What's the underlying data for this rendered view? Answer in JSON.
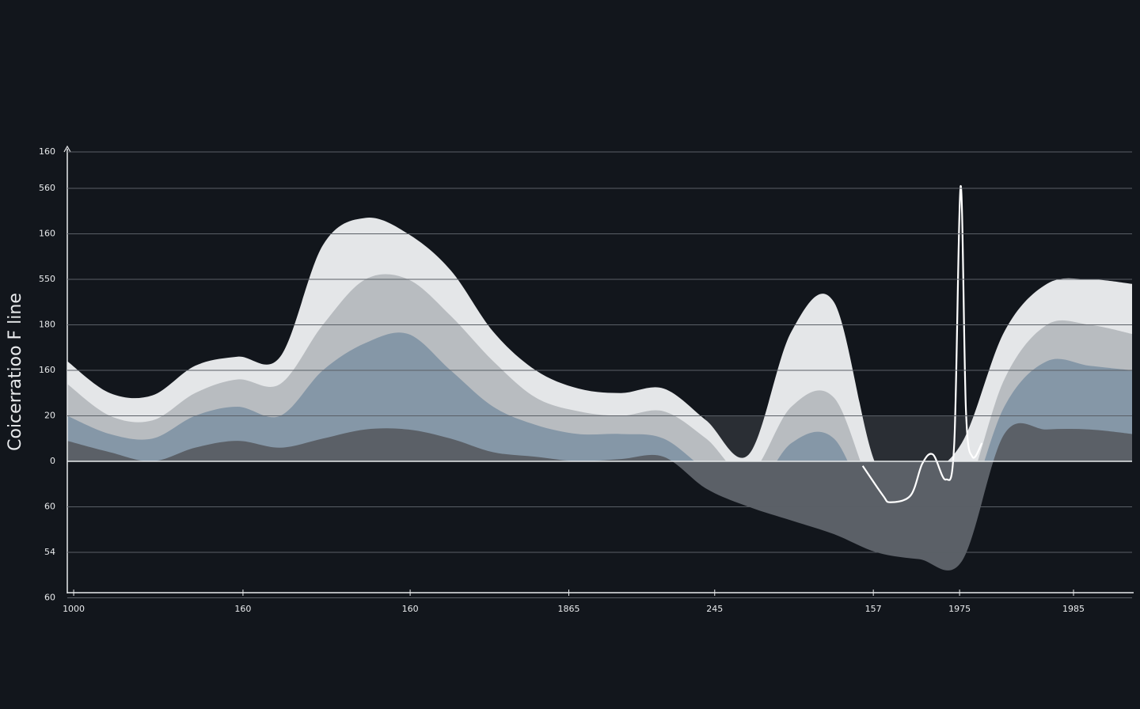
{
  "chart_data": {
    "type": "area",
    "ylabel": "Coicerratioo F line",
    "x": [
      0,
      4,
      8,
      12,
      16,
      20,
      24,
      28,
      32,
      36,
      40,
      44,
      48,
      52,
      56,
      60,
      64,
      68,
      72,
      76,
      80,
      84,
      88,
      92,
      96,
      100
    ],
    "xlim": [
      0,
      100
    ],
    "ylim": [
      -3,
      6.8
    ],
    "xticks": [
      {
        "value": 0.6,
        "label": "1000"
      },
      {
        "value": 16.5,
        "label": "160"
      },
      {
        "value": 32.2,
        "label": "160"
      },
      {
        "value": 47.1,
        "label": "1865"
      },
      {
        "value": 60.8,
        "label": "245"
      },
      {
        "value": 75.7,
        "label": "157"
      },
      {
        "value": 83.8,
        "label": "1975"
      },
      {
        "value": 94.5,
        "label": "1985"
      }
    ],
    "yticks": [
      {
        "value": 6.8,
        "label": "160"
      },
      {
        "value": 6,
        "label": "560"
      },
      {
        "value": 5,
        "label": "160"
      },
      {
        "value": 4,
        "label": "550"
      },
      {
        "value": 3,
        "label": "180"
      },
      {
        "value": 2,
        "label": "160"
      },
      {
        "value": 1,
        "label": "20"
      },
      0,
      {
        "value": -1,
        "label": "60"
      },
      {
        "value": -2,
        "label": "54"
      },
      {
        "value": -3,
        "label": "60"
      }
    ],
    "grid": true,
    "series": [
      {
        "color": "#e4e6e8",
        "values": [
          2.2,
          1.5,
          1.45,
          2.1,
          2.3,
          2.3,
          4.75,
          5.35,
          5.0,
          4.2,
          2.85,
          2.0,
          1.6,
          1.5,
          1.6,
          0.9,
          0.15,
          2.85,
          3.5,
          -0.1,
          -0.3,
          0.4,
          2.85,
          3.9,
          4.0,
          3.9
        ]
      },
      {
        "color": "#b8bcc0",
        "values": [
          1.7,
          1.0,
          0.9,
          1.5,
          1.8,
          1.7,
          3.0,
          4.0,
          4.0,
          3.2,
          2.2,
          1.4,
          1.1,
          1.0,
          1.1,
          0.5,
          -0.3,
          1.2,
          1.4,
          -0.8,
          -1.1,
          -0.9,
          1.8,
          3.0,
          3.0,
          2.8
        ]
      },
      {
        "color": "#8597a7",
        "values": [
          1.0,
          0.6,
          0.5,
          1.0,
          1.2,
          1.0,
          2.0,
          2.6,
          2.8,
          2.0,
          1.2,
          0.8,
          0.6,
          0.6,
          0.5,
          -0.2,
          -0.8,
          0.4,
          0.5,
          -1.3,
          -1.5,
          -1.3,
          1.2,
          2.2,
          2.1,
          2.0
        ]
      },
      {
        "color": "#5b6067",
        "values": [
          0.45,
          0.2,
          0,
          0.3,
          0.45,
          0.3,
          0.5,
          0.7,
          0.7,
          0.5,
          0.2,
          0.1,
          0,
          0.05,
          0.1,
          -0.6,
          -1.0,
          -1.3,
          -1.6,
          -2.0,
          -2.15,
          -2.2,
          0.6,
          0.7,
          0.7,
          0.6
        ]
      },
      {
        "color": "#ffffff",
        "type": "line",
        "x": [
          74.7,
          76.6,
          77.3,
          79.2,
          80.3,
          81.3,
          82.5,
          83.3,
          83.9,
          84.4,
          85.0,
          85.9
        ],
        "values": [
          -0.1,
          -0.75,
          -0.9,
          -0.75,
          -0.05,
          0.15,
          -0.4,
          0.4,
          6.05,
          1.1,
          0.1,
          0.4
        ]
      }
    ]
  }
}
